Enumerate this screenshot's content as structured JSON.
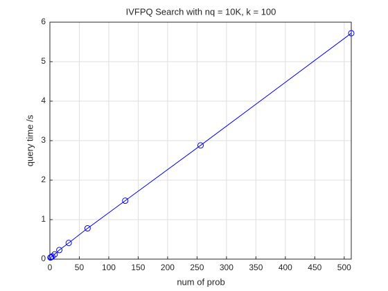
{
  "chart_data": {
    "type": "line",
    "title": "IVFPQ Search with nq = 10K, k = 100",
    "x_label": "num of prob",
    "y_label": "query time /s",
    "x": [
      1,
      2,
      4,
      8,
      16,
      32,
      64,
      128,
      256,
      512
    ],
    "series": [
      {
        "name": "query time",
        "color": "#0000ff",
        "values": [
          0.04,
          0.05,
          0.07,
          0.12,
          0.23,
          0.41,
          0.78,
          1.48,
          2.88,
          5.72
        ]
      }
    ],
    "xlim": [
      0,
      512
    ],
    "ylim": [
      0,
      6
    ],
    "xticks": [
      0,
      50,
      100,
      150,
      200,
      250,
      300,
      350,
      400,
      450,
      500
    ],
    "yticks": [
      0,
      1,
      2,
      3,
      4,
      5,
      6
    ],
    "grid": true,
    "marker": "circle"
  }
}
